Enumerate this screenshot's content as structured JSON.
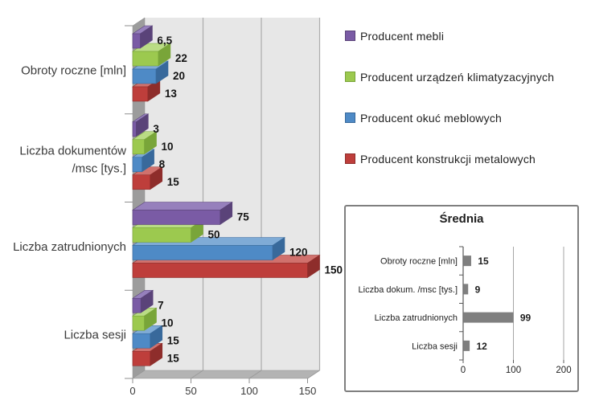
{
  "chart_data": [
    {
      "id": "main-comparison-chart",
      "type": "bar",
      "orientation": "horizontal",
      "style": "3d",
      "title": "",
      "categories": [
        "Obroty roczne [mln]",
        "Liczba dokumentów /msc [tys.]",
        "Liczba zatrudnionych",
        "Liczba sesji"
      ],
      "category_lines": [
        [
          "Obroty roczne [mln]"
        ],
        [
          "Liczba dokumentów",
          "/msc [tys.]"
        ],
        [
          "Liczba zatrudnionych"
        ],
        [
          "Liczba sesji"
        ]
      ],
      "series": [
        {
          "name": "Producent mebli",
          "values": [
            6.5,
            3,
            75,
            7
          ],
          "labels": [
            "6,5",
            "3",
            "75",
            "7"
          ],
          "color": "#7A5BA5",
          "color_top": "#9680BC",
          "color_side": "#5A4379"
        },
        {
          "name": "Producent urządzeń klimatyzacyjnych",
          "values": [
            22,
            10,
            50,
            10
          ],
          "labels": [
            "22",
            "10",
            "50",
            "10"
          ],
          "color": "#9CC94F",
          "color_top": "#BADC85",
          "color_side": "#79A539"
        },
        {
          "name": "Producent okuć meblowych",
          "values": [
            20,
            8,
            120,
            15
          ],
          "labels": [
            "20",
            "8",
            "120",
            "15"
          ],
          "color": "#4E8AC6",
          "color_top": "#7FABD6",
          "color_side": "#38699B"
        },
        {
          "name": "Producent konstrukcji metalowych",
          "values": [
            13,
            15,
            150,
            15
          ],
          "labels": [
            "13",
            "15",
            "150",
            "15"
          ],
          "color": "#BE3E3B",
          "color_top": "#D0716D",
          "color_side": "#8E2D2B"
        }
      ],
      "xlim": [
        0,
        150
      ],
      "xticks": [
        0,
        50,
        100,
        150
      ],
      "grid": true,
      "legend_position": "right",
      "colors": {
        "wall": "#E7E7E7",
        "side_wall": "#9C9C9C",
        "floor": "#B3B3B3",
        "gridline": "#ACACAC",
        "floor_gridline": "#9A9A9A",
        "tick": "#8F8F8F",
        "axis_text": "#3A3A3A",
        "value_text": "#141414"
      }
    },
    {
      "id": "average-inset-chart",
      "type": "bar",
      "orientation": "horizontal",
      "title": "Średnia",
      "categories": [
        "Obroty roczne [mln]",
        "Liczba dokum. /msc [tys.]",
        "Liczba zatrudnionych",
        "Liczba sesji"
      ],
      "values": [
        15,
        9,
        99,
        12
      ],
      "labels": [
        "15",
        "9",
        "99",
        "12"
      ],
      "xlim": [
        0,
        200
      ],
      "xticks": [
        0,
        100,
        200
      ],
      "grid": true,
      "colors": {
        "bar": "#7F7F7F",
        "axis": "#595959",
        "gridline": "#A6A6A6",
        "text": "#1F1F1F",
        "border": "#7F7F7F"
      }
    }
  ]
}
